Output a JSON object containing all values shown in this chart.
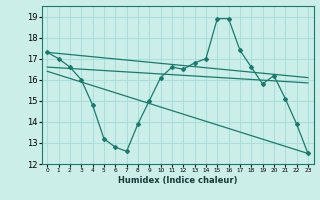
{
  "xlabel": "Humidex (Indice chaleur)",
  "bg_color": "#cceee8",
  "grid_color": "#aadddd",
  "line_color": "#1a7a6e",
  "x_ticks": [
    0,
    1,
    2,
    3,
    4,
    5,
    6,
    7,
    8,
    9,
    10,
    11,
    12,
    13,
    14,
    15,
    16,
    17,
    18,
    19,
    20,
    21,
    22,
    23
  ],
  "ylim": [
    12,
    19.5
  ],
  "xlim": [
    -0.5,
    23.5
  ],
  "series1_x": [
    0,
    1,
    2,
    3,
    4,
    5,
    6,
    7,
    8,
    9,
    10,
    11,
    12,
    13,
    14,
    15,
    16,
    17,
    18,
    19,
    20,
    21,
    22,
    23
  ],
  "series1_y": [
    17.3,
    17.0,
    16.6,
    16.0,
    14.8,
    13.2,
    12.8,
    12.6,
    13.9,
    15.0,
    16.1,
    16.6,
    16.5,
    16.8,
    17.0,
    18.9,
    18.9,
    17.4,
    16.6,
    15.8,
    16.2,
    15.1,
    13.9,
    12.5
  ],
  "series2_x": [
    0,
    23
  ],
  "series2_y": [
    17.3,
    16.1
  ],
  "series3_x": [
    0,
    23
  ],
  "series3_y": [
    16.6,
    15.85
  ],
  "series4_x": [
    0,
    23
  ],
  "series4_y": [
    16.4,
    12.5
  ]
}
